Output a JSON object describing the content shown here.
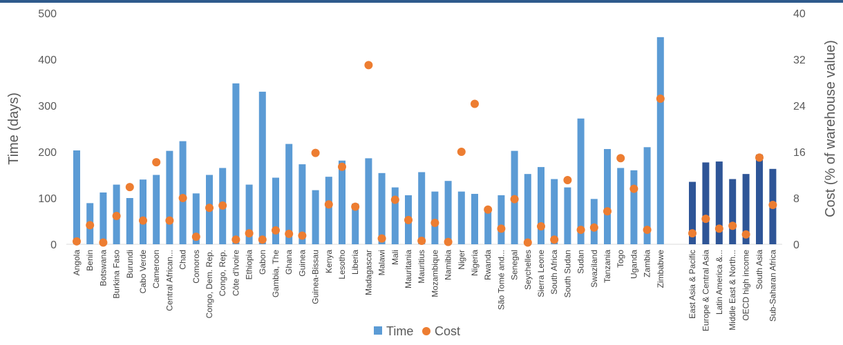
{
  "chart_data": {
    "type": "bar",
    "categories": [
      "Angola",
      "Benin",
      "Botswana",
      "Burkina Faso",
      "Burundi",
      "Cabo Verde",
      "Cameroon",
      "Central African...",
      "Chad",
      "Comoros",
      "Congo, Dem. Rep.",
      "Congo, Rep.",
      "Côte d'Ivoire",
      "Ethiopia",
      "Gabon",
      "Gambia, The",
      "Ghana",
      "Guinea",
      "Guinea-Bissau",
      "Kenya",
      "Lesotho",
      "Liberia",
      "Madagascar",
      "Malawi",
      "Mali",
      "Mauritania",
      "Mauritius",
      "Mozambique",
      "Namibia",
      "Niger",
      "Nigeria",
      "Rwanda",
      "São Tomé and...",
      "Senegal",
      "Seychelles",
      "Sierra Leone",
      "South Africa",
      "South Sudan",
      "Sudan",
      "Swaziland",
      "Tanzania",
      "Togo",
      "Uganda",
      "Zambia",
      "Zimbabwe",
      "East Asia & Pacific",
      "Europe & Central Asia",
      "Latin America &...",
      "Middle East & North...",
      "OECD high income",
      "South Asia",
      "Sub-Saharan Africa"
    ],
    "region_start_index": 45,
    "series": [
      {
        "name": "Time",
        "kind": "bar",
        "axis": "left",
        "values": [
          203,
          89,
          112,
          129,
          100,
          140,
          150,
          202,
          223,
          110,
          150,
          165,
          348,
          129,
          330,
          144,
          217,
          173,
          117,
          146,
          181,
          88,
          186,
          154,
          123,
          106,
          156,
          114,
          137,
          114,
          109,
          74,
          106,
          202,
          152,
          167,
          141,
          123,
          272,
          98,
          206,
          165,
          160,
          210,
          448,
          135,
          177,
          179,
          141,
          152,
          194,
          163
        ],
        "colors": {
          "countries": "#5b9bd5",
          "regions": "#2e5597"
        }
      },
      {
        "name": "Cost",
        "kind": "marker",
        "axis": "right",
        "values": [
          0.5,
          3.3,
          0.3,
          4.9,
          9.9,
          4.1,
          14.2,
          4.1,
          8.0,
          1.3,
          6.3,
          6.7,
          0.8,
          1.9,
          0.8,
          2.4,
          1.8,
          1.5,
          15.8,
          6.9,
          13.4,
          6.5,
          31.0,
          1.0,
          7.7,
          4.2,
          0.6,
          3.7,
          0.4,
          16.0,
          24.3,
          6.0,
          2.7,
          7.8,
          0.3,
          3.1,
          0.8,
          11.1,
          2.5,
          2.9,
          5.7,
          14.9,
          9.6,
          2.5,
          25.2,
          1.9,
          4.4,
          2.7,
          3.2,
          1.7,
          15.0,
          6.8
        ],
        "color": "#ed7d31"
      }
    ],
    "ylabel_left": "Time (days)",
    "ylabel_right": "Cost (% of warehouse value)",
    "ylim_left": [
      0,
      500
    ],
    "ylim_right": [
      0,
      40
    ],
    "yticks_left": [
      "0",
      "100",
      "200",
      "300",
      "400",
      "500"
    ],
    "yticks_right": [
      "0",
      "8",
      "16",
      "24",
      "32",
      "40"
    ],
    "legend": {
      "position": "bottom",
      "items": [
        "Time",
        "Cost"
      ]
    },
    "grid": false
  }
}
